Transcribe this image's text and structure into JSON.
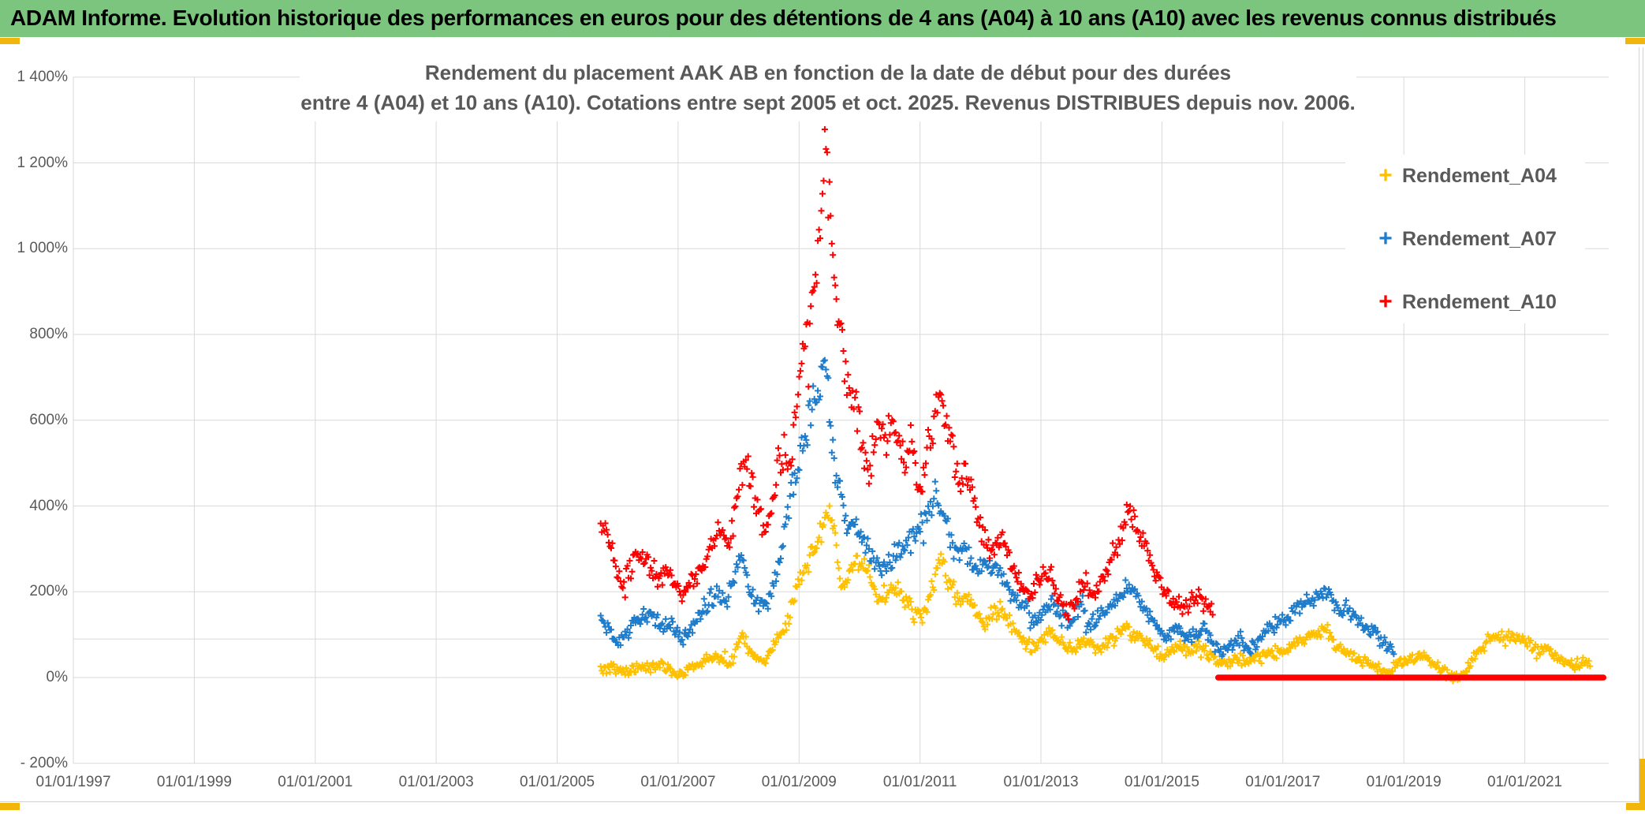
{
  "header": {
    "title": "ADAM Informe. Evolution historique des performances en euros pour des détentions de 4 ans (A04) à 10 ans (A10) avec les revenus connus distribués",
    "bg_color": "#7CC57E",
    "handle_color": "#F2B50B"
  },
  "colors": {
    "grid": "#D9D9D9",
    "axis_text": "#595959",
    "chart_bg": "#FFFFFF"
  },
  "chart_data": {
    "type": "scatter",
    "marker": "plus",
    "grid": true,
    "title_line1": "Rendement du placement AAK AB en fonction de la date de début pour des durées",
    "title_line2": "entre 4 (A04) et 10 ans (A10). Cotations entre sept 2005 et oct. 2025. Revenus DISTRIBUES depuis nov. 2006.",
    "legend_position": "top-right",
    "x_axis": {
      "tick_labels": [
        "01/01/1997",
        "01/01/1999",
        "01/01/2001",
        "01/01/2003",
        "01/01/2005",
        "01/01/2007",
        "01/01/2009",
        "01/01/2011",
        "01/01/2013",
        "01/01/2015",
        "01/01/2017",
        "01/01/2019",
        "01/01/2021"
      ],
      "tick_years": [
        1997,
        1999,
        2001,
        2003,
        2005,
        2007,
        2009,
        2011,
        2013,
        2015,
        2017,
        2019,
        2021
      ],
      "min_year": 1997,
      "max_year": 2022.4
    },
    "y_axis": {
      "tick_labels": [
        "1 400%",
        "1 200%",
        "1 000%",
        "800%",
        "600%",
        "400%",
        "200%",
        "0%",
        "- 200%"
      ],
      "tick_values": [
        1400,
        1200,
        1000,
        800,
        600,
        400,
        200,
        0,
        -200
      ],
      "unit": "%",
      "extra_faint_line_pct": 90
    },
    "noise": {
      "base_pct": 10,
      "rel": 0.055,
      "step_years": 0.0192,
      "spread": 1.3,
      "outlier_p": 0.985,
      "outlier_mult": 2.6
    },
    "series": [
      {
        "name": "Rendement_A04",
        "color": "#FFC000",
        "start_year": 2005.72,
        "end_year": 2022.08,
        "anchors": [
          [
            2005.72,
            17
          ],
          [
            2005.9,
            23
          ],
          [
            2006.1,
            13
          ],
          [
            2006.3,
            25
          ],
          [
            2006.5,
            20
          ],
          [
            2006.7,
            28
          ],
          [
            2006.9,
            16
          ],
          [
            2007.05,
            8
          ],
          [
            2007.2,
            24
          ],
          [
            2007.35,
            30
          ],
          [
            2007.5,
            45
          ],
          [
            2007.6,
            52
          ],
          [
            2007.72,
            38
          ],
          [
            2007.85,
            30
          ],
          [
            2008.0,
            75
          ],
          [
            2008.07,
            100
          ],
          [
            2008.18,
            60
          ],
          [
            2008.3,
            45
          ],
          [
            2008.45,
            38
          ],
          [
            2008.6,
            80
          ],
          [
            2008.72,
            105
          ],
          [
            2008.85,
            150
          ],
          [
            2008.95,
            195
          ],
          [
            2009.1,
            248
          ],
          [
            2009.25,
            295
          ],
          [
            2009.4,
            345
          ],
          [
            2009.5,
            388
          ],
          [
            2009.6,
            335
          ],
          [
            2009.7,
            200
          ],
          [
            2009.8,
            218
          ],
          [
            2009.9,
            275
          ],
          [
            2010.0,
            252
          ],
          [
            2010.12,
            262
          ],
          [
            2010.3,
            172
          ],
          [
            2010.45,
            205
          ],
          [
            2010.6,
            212
          ],
          [
            2010.75,
            185
          ],
          [
            2010.9,
            148
          ],
          [
            2011.05,
            138
          ],
          [
            2011.2,
            205
          ],
          [
            2011.32,
            278
          ],
          [
            2011.45,
            228
          ],
          [
            2011.6,
            190
          ],
          [
            2011.75,
            182
          ],
          [
            2011.9,
            152
          ],
          [
            2012.05,
            128
          ],
          [
            2012.2,
            152
          ],
          [
            2012.35,
            160
          ],
          [
            2012.5,
            122
          ],
          [
            2012.65,
            95
          ],
          [
            2012.85,
            68
          ],
          [
            2013.05,
            95
          ],
          [
            2013.2,
            108
          ],
          [
            2013.4,
            62
          ],
          [
            2013.6,
            75
          ],
          [
            2013.8,
            82
          ],
          [
            2013.95,
            70
          ],
          [
            2014.1,
            80
          ],
          [
            2014.25,
            95
          ],
          [
            2014.4,
            118
          ],
          [
            2014.55,
            100
          ],
          [
            2014.7,
            88
          ],
          [
            2014.88,
            66
          ],
          [
            2015.05,
            50
          ],
          [
            2015.25,
            74
          ],
          [
            2015.45,
            60
          ],
          [
            2015.6,
            72
          ],
          [
            2015.8,
            55
          ],
          [
            2015.95,
            32
          ],
          [
            2016.1,
            38
          ],
          [
            2016.25,
            45
          ],
          [
            2016.4,
            38
          ],
          [
            2016.55,
            48
          ],
          [
            2016.7,
            52
          ],
          [
            2016.85,
            58
          ],
          [
            2017.0,
            62
          ],
          [
            2017.15,
            78
          ],
          [
            2017.3,
            88
          ],
          [
            2017.45,
            98
          ],
          [
            2017.6,
            108
          ],
          [
            2017.72,
            112
          ],
          [
            2017.85,
            76
          ],
          [
            2018.0,
            60
          ],
          [
            2018.15,
            50
          ],
          [
            2018.3,
            38
          ],
          [
            2018.45,
            28
          ],
          [
            2018.6,
            18
          ],
          [
            2018.75,
            11
          ],
          [
            2018.9,
            32
          ],
          [
            2019.05,
            42
          ],
          [
            2019.2,
            45
          ],
          [
            2019.35,
            48
          ],
          [
            2019.5,
            30
          ],
          [
            2019.65,
            15
          ],
          [
            2019.8,
            2
          ],
          [
            2019.9,
            -3
          ],
          [
            2020.0,
            14
          ],
          [
            2020.15,
            45
          ],
          [
            2020.3,
            72
          ],
          [
            2020.45,
            95
          ],
          [
            2020.55,
            102
          ],
          [
            2020.68,
            88
          ],
          [
            2020.8,
            96
          ],
          [
            2020.95,
            94
          ],
          [
            2021.1,
            72
          ],
          [
            2021.22,
            55
          ],
          [
            2021.35,
            74
          ],
          [
            2021.5,
            52
          ],
          [
            2021.65,
            34
          ],
          [
            2021.8,
            30
          ],
          [
            2021.95,
            36
          ],
          [
            2022.08,
            33
          ]
        ]
      },
      {
        "name": "Rendement_A07",
        "color": "#1F7CCB",
        "start_year": 2005.72,
        "end_year": 2018.85,
        "anchors": [
          [
            2005.72,
            132
          ],
          [
            2005.85,
            115
          ],
          [
            2006.0,
            88
          ],
          [
            2006.15,
            100
          ],
          [
            2006.3,
            148
          ],
          [
            2006.5,
            142
          ],
          [
            2006.65,
            130
          ],
          [
            2006.8,
            122
          ],
          [
            2007.0,
            100
          ],
          [
            2007.1,
            90
          ],
          [
            2007.25,
            122
          ],
          [
            2007.4,
            158
          ],
          [
            2007.55,
            185
          ],
          [
            2007.65,
            200
          ],
          [
            2007.8,
            168
          ],
          [
            2007.95,
            250
          ],
          [
            2008.05,
            272
          ],
          [
            2008.15,
            215
          ],
          [
            2008.3,
            172
          ],
          [
            2008.45,
            165
          ],
          [
            2008.6,
            235
          ],
          [
            2008.75,
            330
          ],
          [
            2008.85,
            420
          ],
          [
            2008.95,
            470
          ],
          [
            2009.1,
            570
          ],
          [
            2009.25,
            640
          ],
          [
            2009.38,
            700
          ],
          [
            2009.45,
            745
          ],
          [
            2009.52,
            600
          ],
          [
            2009.6,
            480
          ],
          [
            2009.7,
            430
          ],
          [
            2009.8,
            340
          ],
          [
            2009.92,
            365
          ],
          [
            2010.05,
            330
          ],
          [
            2010.2,
            280
          ],
          [
            2010.35,
            250
          ],
          [
            2010.5,
            278
          ],
          [
            2010.65,
            295
          ],
          [
            2010.8,
            310
          ],
          [
            2010.95,
            340
          ],
          [
            2011.1,
            385
          ],
          [
            2011.25,
            428
          ],
          [
            2011.38,
            370
          ],
          [
            2011.5,
            328
          ],
          [
            2011.6,
            292
          ],
          [
            2011.7,
            305
          ],
          [
            2011.85,
            272
          ],
          [
            2012.0,
            248
          ],
          [
            2012.15,
            265
          ],
          [
            2012.3,
            248
          ],
          [
            2012.45,
            215
          ],
          [
            2012.6,
            168
          ],
          [
            2012.72,
            188
          ],
          [
            2012.88,
            125
          ],
          [
            2013.05,
            150
          ],
          [
            2013.2,
            172
          ],
          [
            2013.35,
            138
          ],
          [
            2013.5,
            130
          ],
          [
            2013.65,
            170
          ],
          [
            2013.8,
            122
          ],
          [
            2013.95,
            138
          ],
          [
            2014.1,
            152
          ],
          [
            2014.25,
            178
          ],
          [
            2014.4,
            210
          ],
          [
            2014.5,
            215
          ],
          [
            2014.65,
            172
          ],
          [
            2014.8,
            152
          ],
          [
            2014.95,
            108
          ],
          [
            2015.1,
            95
          ],
          [
            2015.25,
            118
          ],
          [
            2015.4,
            92
          ],
          [
            2015.55,
            105
          ],
          [
            2015.68,
            112
          ],
          [
            2015.82,
            90
          ],
          [
            2015.95,
            62
          ],
          [
            2016.1,
            72
          ],
          [
            2016.25,
            85
          ],
          [
            2016.4,
            66
          ],
          [
            2016.55,
            70
          ],
          [
            2016.7,
            108
          ],
          [
            2016.85,
            122
          ],
          [
            2017.0,
            130
          ],
          [
            2017.15,
            148
          ],
          [
            2017.3,
            162
          ],
          [
            2017.45,
            180
          ],
          [
            2017.6,
            195
          ],
          [
            2017.7,
            203
          ],
          [
            2017.82,
            172
          ],
          [
            2017.95,
            152
          ],
          [
            2018.1,
            160
          ],
          [
            2018.25,
            140
          ],
          [
            2018.4,
            112
          ],
          [
            2018.55,
            98
          ],
          [
            2018.7,
            75
          ],
          [
            2018.85,
            62
          ]
        ]
      },
      {
        "name": "Rendement_A10",
        "color": "#FF0000",
        "start_year": 2005.72,
        "end_year": 2015.85,
        "flat_zero_segment": [
          2015.93,
          2022.3
        ],
        "anchors": [
          [
            2005.72,
            355
          ],
          [
            2005.85,
            320
          ],
          [
            2006.05,
            215
          ],
          [
            2006.2,
            250
          ],
          [
            2006.35,
            285
          ],
          [
            2006.55,
            255
          ],
          [
            2006.7,
            225
          ],
          [
            2006.85,
            255
          ],
          [
            2007.05,
            185
          ],
          [
            2007.2,
            215
          ],
          [
            2007.35,
            255
          ],
          [
            2007.5,
            300
          ],
          [
            2007.62,
            325
          ],
          [
            2007.72,
            350
          ],
          [
            2007.85,
            305
          ],
          [
            2008.0,
            450
          ],
          [
            2008.07,
            555
          ],
          [
            2008.15,
            480
          ],
          [
            2008.25,
            430
          ],
          [
            2008.4,
            345
          ],
          [
            2008.55,
            395
          ],
          [
            2008.65,
            490
          ],
          [
            2008.75,
            520
          ],
          [
            2008.85,
            490
          ],
          [
            2008.95,
            630
          ],
          [
            2009.1,
            790
          ],
          [
            2009.2,
            860
          ],
          [
            2009.3,
            980
          ],
          [
            2009.42,
            1230
          ],
          [
            2009.5,
            1140
          ],
          [
            2009.58,
            950
          ],
          [
            2009.65,
            840
          ],
          [
            2009.72,
            780
          ],
          [
            2009.8,
            700
          ],
          [
            2009.9,
            650
          ],
          [
            2010.05,
            545
          ],
          [
            2010.15,
            470
          ],
          [
            2010.3,
            590
          ],
          [
            2010.45,
            555
          ],
          [
            2010.55,
            615
          ],
          [
            2010.7,
            505
          ],
          [
            2010.85,
            555
          ],
          [
            2011.0,
            420
          ],
          [
            2011.1,
            520
          ],
          [
            2011.2,
            570
          ],
          [
            2011.3,
            680
          ],
          [
            2011.42,
            580
          ],
          [
            2011.55,
            520
          ],
          [
            2011.65,
            430
          ],
          [
            2011.75,
            490
          ],
          [
            2011.9,
            395
          ],
          [
            2012.05,
            330
          ],
          [
            2012.2,
            300
          ],
          [
            2012.35,
            330
          ],
          [
            2012.5,
            265
          ],
          [
            2012.65,
            225
          ],
          [
            2012.8,
            195
          ],
          [
            2013.0,
            230
          ],
          [
            2013.12,
            250
          ],
          [
            2013.3,
            182
          ],
          [
            2013.45,
            152
          ],
          [
            2013.62,
            198
          ],
          [
            2013.75,
            218
          ],
          [
            2013.9,
            182
          ],
          [
            2014.1,
            255
          ],
          [
            2014.3,
            325
          ],
          [
            2014.48,
            400
          ],
          [
            2014.6,
            330
          ],
          [
            2014.72,
            305
          ],
          [
            2014.85,
            255
          ],
          [
            2015.0,
            225
          ],
          [
            2015.1,
            190
          ],
          [
            2015.25,
            175
          ],
          [
            2015.4,
            160
          ],
          [
            2015.55,
            190
          ],
          [
            2015.7,
            172
          ],
          [
            2015.85,
            155
          ]
        ]
      }
    ]
  }
}
